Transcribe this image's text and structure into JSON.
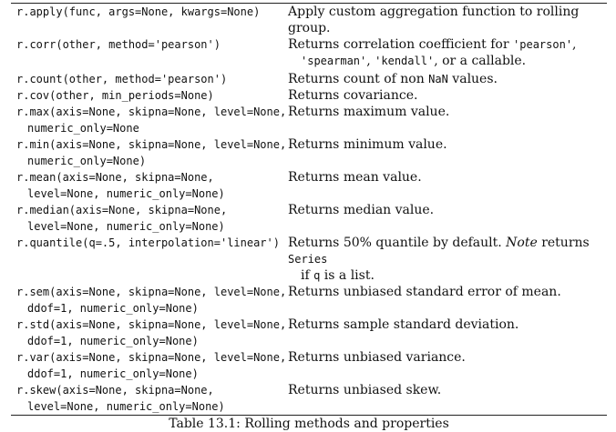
{
  "rows": [
    {
      "sig": [
        "r.apply(func, args=None, kwargs=None)"
      ],
      "desc": [
        "Apply custom aggregation function to rolling group."
      ]
    },
    {
      "sig": [
        "r.corr(other, method='pearson')"
      ],
      "desc": [
        [
          {
            "t": "Returns correlation coefficient for "
          },
          {
            "c": "'pearson'"
          },
          {
            "t": ","
          }
        ],
        [
          {
            "c": "'spearman'"
          },
          {
            "t": ", "
          },
          {
            "c": "'kendall'"
          },
          {
            "t": ", or a callable."
          }
        ]
      ]
    },
    {
      "sig": [
        "r.count(other, method='pearson')"
      ],
      "desc": [
        [
          {
            "t": "Returns count of non "
          },
          {
            "c": "NaN"
          },
          {
            "t": " values."
          }
        ]
      ]
    },
    {
      "sig": [
        "r.cov(other, min_periods=None)"
      ],
      "desc": [
        "Returns covariance."
      ]
    },
    {
      "sig": [
        "r.max(axis=None, skipna=None, level=None,",
        "numeric_only=None"
      ],
      "desc": [
        "Returns maximum value."
      ]
    },
    {
      "sig": [
        "r.min(axis=None, skipna=None, level=None,",
        "numeric_only=None)"
      ],
      "desc": [
        "Returns minimum value."
      ]
    },
    {
      "sig": [
        "r.mean(axis=None, skipna=None,",
        "level=None, numeric_only=None)"
      ],
      "desc": [
        "Returns mean value."
      ]
    },
    {
      "sig": [
        "r.median(axis=None, skipna=None,",
        "level=None, numeric_only=None)"
      ],
      "desc": [
        "Returns median value."
      ]
    },
    {
      "sig": [
        "r.quantile(q=.5, interpolation='linear')"
      ],
      "desc": [
        [
          {
            "t": "Returns 50% quantile by default. "
          },
          {
            "i": "Note"
          },
          {
            "t": " returns "
          },
          {
            "c": "Series"
          }
        ],
        [
          {
            "t": "if "
          },
          {
            "c": "q"
          },
          {
            "t": " is a list."
          }
        ]
      ]
    },
    {
      "sig": [
        "r.sem(axis=None, skipna=None, level=None,",
        "ddof=1, numeric_only=None)"
      ],
      "desc": [
        "Returns unbiased standard error of mean."
      ]
    },
    {
      "sig": [
        "r.std(axis=None, skipna=None, level=None,",
        "ddof=1, numeric_only=None)"
      ],
      "desc": [
        "Returns sample standard deviation."
      ]
    },
    {
      "sig": [
        "r.var(axis=None, skipna=None, level=None,",
        "ddof=1, numeric_only=None)"
      ],
      "desc": [
        "Returns unbiased variance."
      ]
    },
    {
      "sig": [
        "r.skew(axis=None, skipna=None,",
        "level=None, numeric_only=None)"
      ],
      "desc": [
        "Returns unbiased skew."
      ]
    }
  ],
  "caption": "Table 13.1: Rolling methods and properties"
}
